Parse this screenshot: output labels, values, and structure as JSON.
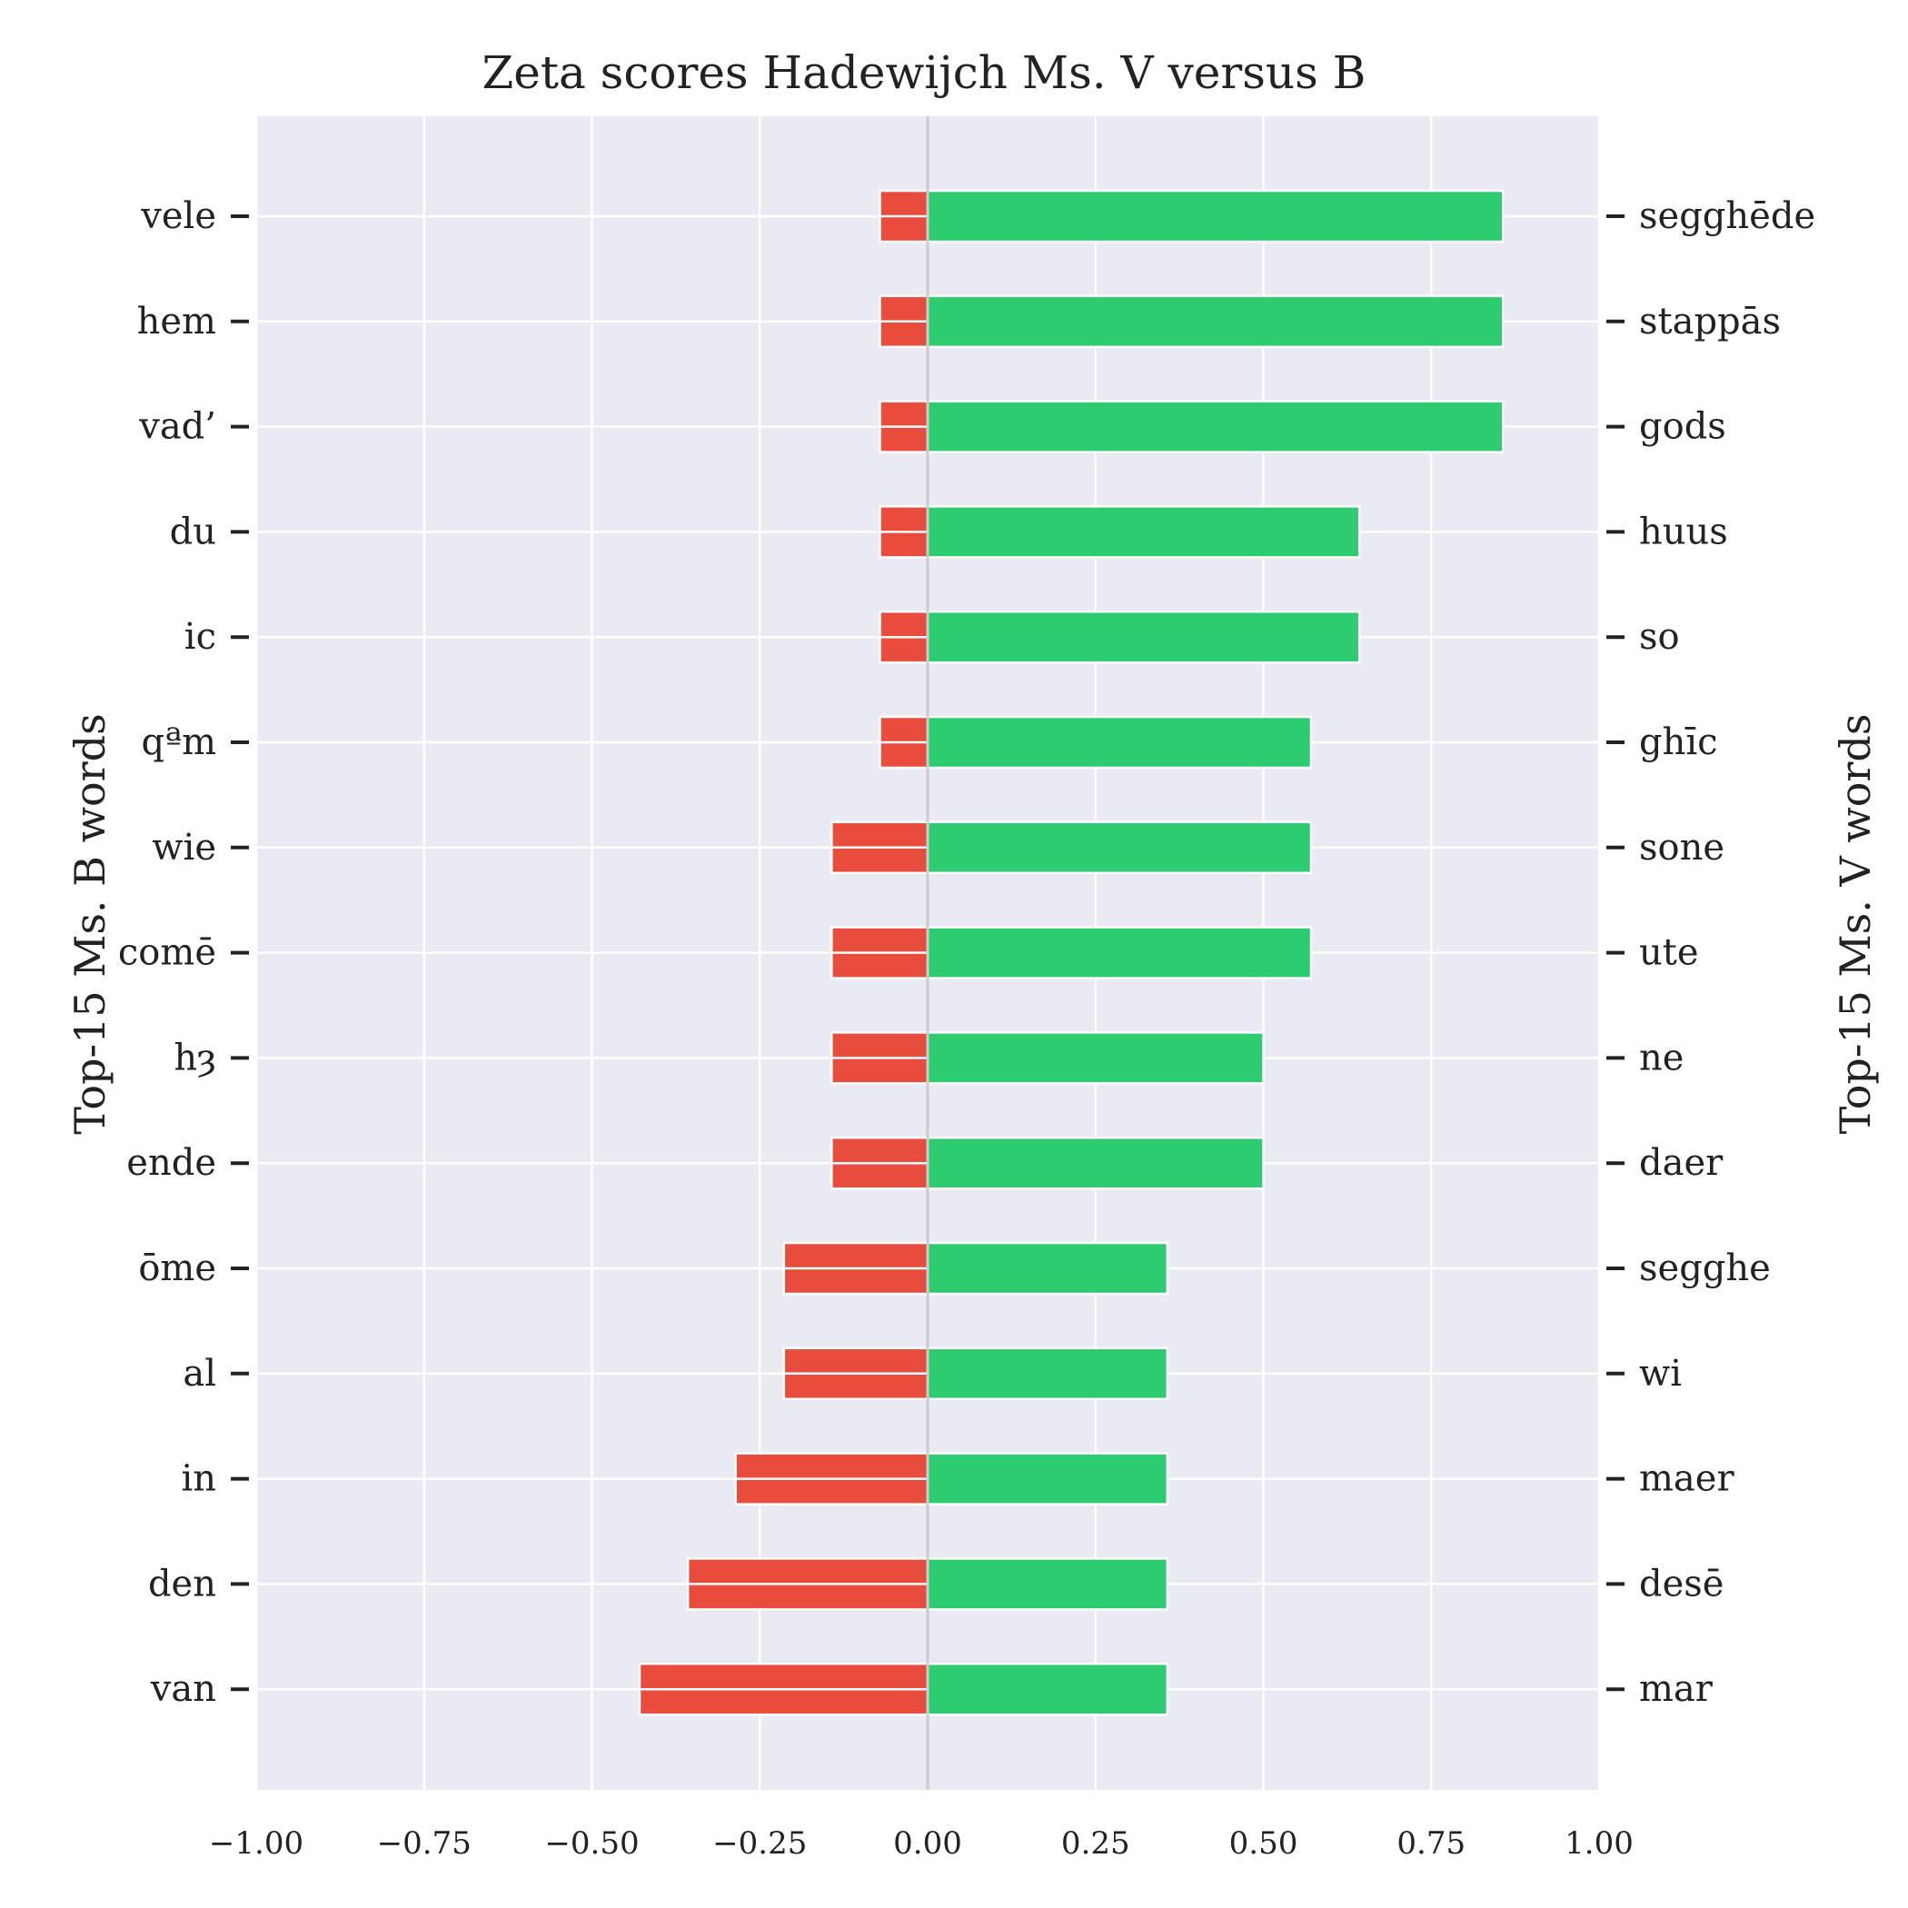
{
  "chart_data": {
    "type": "bar",
    "orientation": "horizontal-diverging",
    "title": "Zeta scores Hadewijch Ms. V versus B",
    "ylabel_left": "Top-15 Ms. B words",
    "ylabel_right": "Top-15 Ms. V words",
    "xlabel": "",
    "xlim": [
      -1.0,
      1.0
    ],
    "xticks": [
      "−1.00",
      "−0.75",
      "−0.50",
      "−0.25",
      "0.00",
      "0.25",
      "0.50",
      "0.75",
      "1.00"
    ],
    "xtick_values": [
      -1.0,
      -0.75,
      -0.5,
      -0.25,
      0.0,
      0.25,
      0.5,
      0.75,
      1.0
    ],
    "grid": true,
    "background": "#eaeaf2",
    "colors": {
      "positive": "#2ecc71",
      "negative": "#e74c3c",
      "zero_line": "#cccccc",
      "grid": "#ffffff"
    },
    "series": [
      {
        "name": "Top-15 Ms. B words",
        "categories": [
          "vele",
          "hem",
          "vad’",
          "du",
          "ic",
          "qªm",
          "wie",
          "comē",
          "hȝ",
          "ende",
          "ōme",
          "al",
          "in",
          "den",
          "van"
        ],
        "values": [
          -0.071,
          -0.071,
          -0.071,
          -0.071,
          -0.071,
          -0.071,
          -0.143,
          -0.143,
          -0.143,
          -0.143,
          -0.214,
          -0.214,
          -0.286,
          -0.357,
          -0.429
        ]
      },
      {
        "name": "Top-15 Ms. V words",
        "categories": [
          "segghēde",
          "stappās",
          "gods",
          "huus",
          "so",
          "ghīc",
          "sone",
          "ute",
          "ne",
          "daer",
          "segghe",
          "wi",
          "maer",
          "desē",
          "mar"
        ],
        "values": [
          0.857,
          0.857,
          0.857,
          0.643,
          0.643,
          0.571,
          0.571,
          0.571,
          0.5,
          0.5,
          0.357,
          0.357,
          0.357,
          0.357,
          0.357
        ]
      }
    ]
  }
}
